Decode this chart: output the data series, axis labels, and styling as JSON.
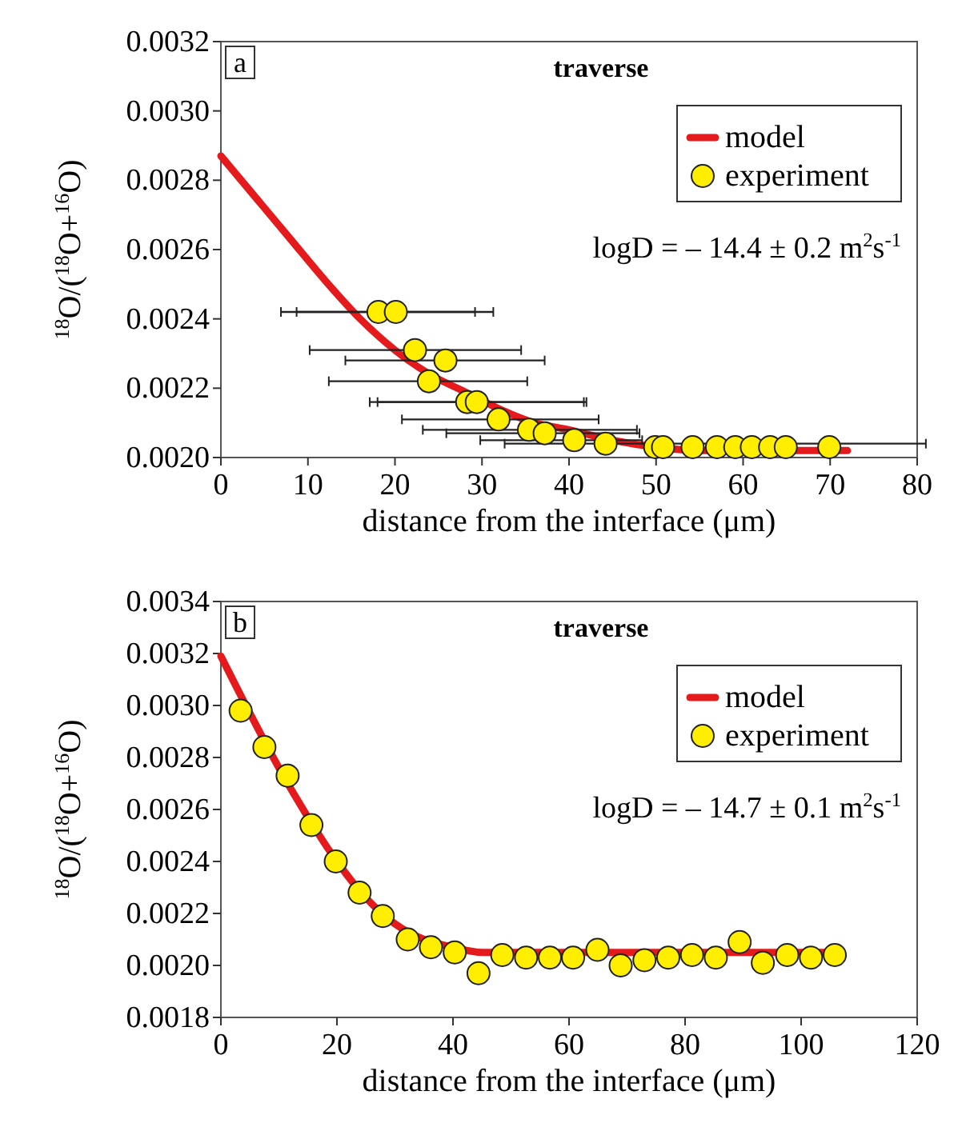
{
  "chart_data": [
    {
      "type": "scatter",
      "title": "traverse",
      "xlabel": "distance from the interface (μm)",
      "ylabel": "$^{18}$O/($^{18}$O+$^{16}$O)",
      "annotations": [
        "a",
        "logD = – 14.4 ± 0.2 m$^{2}$s$^{-1}$"
      ],
      "xlim": [
        0,
        80
      ],
      "xticks": [
        0,
        10,
        20,
        30,
        40,
        50,
        60,
        70,
        80
      ],
      "ylim": [
        0.002,
        0.0032
      ],
      "yticks": [
        {
          "value": 0.002,
          "label": "0.0020"
        },
        {
          "value": 0.0022,
          "label": "0.0022"
        },
        {
          "value": 0.0024,
          "label": "0.0024"
        },
        {
          "value": 0.0026,
          "label": "0.0026"
        },
        {
          "value": 0.0028,
          "label": "0.0028"
        },
        {
          "value": 0.003,
          "label": "0.0030"
        },
        {
          "value": 0.0032,
          "label": "0.0032"
        }
      ],
      "legend": "top right",
      "grid": false,
      "series": [
        {
          "name": "model",
          "type": "line",
          "color": "#e41a1c",
          "line_style": "solid",
          "x": [
            0,
            4,
            8,
            12,
            16,
            20,
            24,
            28,
            32,
            36,
            40,
            45,
            50,
            55,
            60,
            66,
            72
          ],
          "values": [
            0.00287,
            0.00275,
            0.00263,
            0.00251,
            0.0024,
            0.00231,
            0.00224,
            0.00219,
            0.00214,
            0.0021,
            0.00208,
            0.00205,
            0.00203,
            0.00202,
            0.00202,
            0.00202,
            0.00202
          ]
        },
        {
          "name": "experiment",
          "color": "#ffee00",
          "marker": "circle",
          "x": [
            18.1,
            20.1,
            22.3,
            25.8,
            23.9,
            28.3,
            29.4,
            31.9,
            35.4,
            37.2,
            40.6,
            44.2,
            49.9,
            50.8,
            54.2,
            57,
            59.1,
            61,
            63.1,
            64.9,
            69.9
          ],
          "values": [
            0.00242,
            0.00242,
            0.00231,
            0.00228,
            0.00222,
            0.00216,
            0.00216,
            0.00211,
            0.00208,
            0.00207,
            0.00205,
            0.00204,
            0.00203,
            0.00203,
            0.00203,
            0.00203,
            0.00203,
            0.00203,
            0.00203,
            0.00203,
            0.00203
          ],
          "xerrors": [
            [
              6.9,
              29.2
            ],
            [
              8.7,
              31.3
            ],
            [
              10.2,
              34.5
            ],
            [
              14.3,
              37.2
            ],
            [
              12.4,
              35.2
            ],
            [
              17.1,
              41.7
            ],
            [
              18,
              42
            ],
            [
              20.8,
              43.4
            ],
            [
              23.2,
              47.8
            ],
            [
              25.9,
              48.1
            ],
            [
              29.8,
              48.4
            ],
            [
              32.6,
              81
            ],
            null,
            null,
            null,
            null,
            null,
            null,
            null,
            null,
            null
          ]
        }
      ]
    },
    {
      "type": "scatter",
      "title": "traverse",
      "xlabel": "distance from the interface (μm)",
      "ylabel": "$^{18}$O/($^{18}$O+$^{16}$O)",
      "annotations": [
        "b",
        "logD = – 14.7 ± 0.1 m$^{2}$s$^{-1}$"
      ],
      "xlim": [
        0,
        120
      ],
      "xticks": [
        0,
        20,
        40,
        60,
        80,
        100,
        120
      ],
      "ylim": [
        0.0018,
        0.0034
      ],
      "yticks": [
        {
          "value": 0.0018,
          "label": "0.0018"
        },
        {
          "value": 0.002,
          "label": "0.0020"
        },
        {
          "value": 0.0022,
          "label": "0.0022"
        },
        {
          "value": 0.0024,
          "label": "0.0024"
        },
        {
          "value": 0.0026,
          "label": "0.0026"
        },
        {
          "value": 0.0028,
          "label": "0.0028"
        },
        {
          "value": 0.003,
          "label": "0.0030"
        },
        {
          "value": 0.0032,
          "label": "0.0032"
        },
        {
          "value": 0.0034,
          "label": "0.0034"
        }
      ],
      "legend": "top right",
      "grid": false,
      "series": [
        {
          "name": "model",
          "type": "line",
          "color": "#e41a1c",
          "line_style": "solid",
          "x": [
            0,
            5,
            10,
            15,
            20,
            25,
            30,
            35,
            40,
            45,
            50,
            60,
            80,
            104
          ],
          "values": [
            0.00319,
            0.00297,
            0.00276,
            0.00257,
            0.0024,
            0.00226,
            0.00216,
            0.0021,
            0.00207,
            0.00205,
            0.00205,
            0.00205,
            0.00205,
            0.00205
          ]
        },
        {
          "name": "experiment",
          "color": "#ffee00",
          "marker": "circle",
          "x": [
            3.4,
            7.5,
            11.5,
            15.6,
            19.8,
            23.9,
            27.9,
            32.2,
            36.2,
            40.3,
            44.4,
            48.5,
            52.6,
            56.7,
            60.7,
            64.9,
            68.9,
            73,
            77.1,
            81.2,
            85.3,
            89.4,
            93.4,
            97.6,
            101.7,
            105.8
          ],
          "values": [
            0.00298,
            0.00284,
            0.00273,
            0.00254,
            0.0024,
            0.00228,
            0.00219,
            0.0021,
            0.00207,
            0.00205,
            0.00197,
            0.00204,
            0.00203,
            0.00203,
            0.00203,
            0.00206,
            0.002,
            0.00202,
            0.00203,
            0.00204,
            0.00203,
            0.00209,
            0.00201,
            0.00204,
            0.00203,
            0.00204
          ]
        }
      ]
    }
  ]
}
